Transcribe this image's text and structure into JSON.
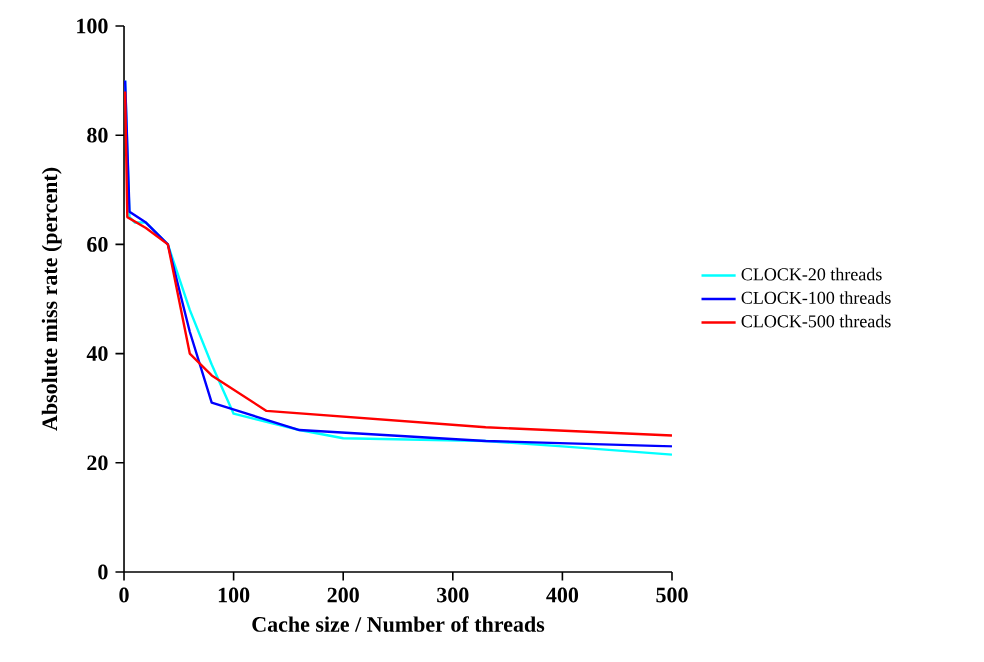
{
  "chart_data": {
    "type": "line",
    "xlabel": "Cache size / Number of threads",
    "ylabel": "Absolute miss rate (percent)",
    "xlim": [
      0,
      500
    ],
    "ylim": [
      0,
      100
    ],
    "xticks": [
      0,
      100,
      200,
      300,
      400,
      500
    ],
    "yticks": [
      0,
      20,
      40,
      60,
      80,
      100
    ],
    "legend": "right",
    "grid": false,
    "series": [
      {
        "name": "CLOCK-20 threads",
        "color": "#00ffff",
        "x": [
          1,
          5,
          10,
          20,
          40,
          60,
          80,
          100,
          160,
          200,
          330,
          400,
          500
        ],
        "values": [
          90,
          65,
          64,
          64,
          60,
          48,
          38,
          29,
          26,
          24.5,
          24,
          23,
          21.5
        ]
      },
      {
        "name": "CLOCK-100 threads",
        "color": "#0000ff",
        "x": [
          1,
          5,
          20,
          40,
          60,
          80,
          160,
          330,
          500
        ],
        "values": [
          90,
          66,
          64,
          60,
          44,
          31,
          26,
          24,
          23
        ]
      },
      {
        "name": "CLOCK-500 threads",
        "color": "#ff0000",
        "x": [
          1,
          3,
          20,
          40,
          60,
          80,
          130,
          330,
          500
        ],
        "values": [
          88,
          65,
          63,
          60,
          40,
          36,
          29.5,
          26.5,
          25
        ]
      }
    ]
  }
}
